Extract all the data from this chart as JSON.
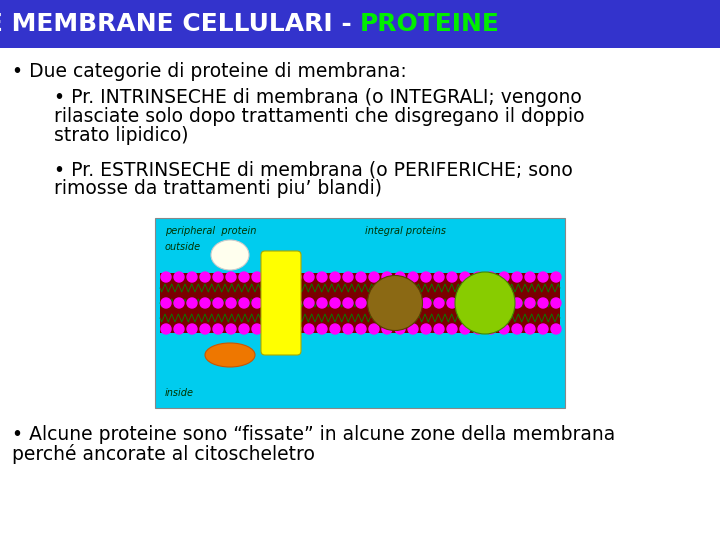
{
  "title_part1": "LE MEMBRANE CELLULARI - ",
  "title_part2": "PROTEINE",
  "title_bg": "#3333cc",
  "title_color1": "#ffffff",
  "title_color2": "#00ee00",
  "body_bg": "#ffffff",
  "img_bg": "#00ccee",
  "membrane_color": "#7a0000",
  "membrane_wave_color": "#008800",
  "head_color": "#ff00ff",
  "yellow_protein": "#ffff00",
  "brown_protein": "#8b6914",
  "green_protein": "#88cc00",
  "white_blob": "#ffffee",
  "orange_blob": "#ee7700",
  "label_color": "#003300",
  "text_color": "#000000",
  "title_fontsize": 18,
  "body_fontsize": 13.5,
  "bullet1": "• Due categorie di proteine di membrana:",
  "bullet2_line1": "    • Pr. INTRINSECHE di membrana (o INTEGRALI; vengono",
  "bullet2_line2": "    rilasciate solo dopo trattamenti che disgregano il doppio",
  "bullet2_line3": "    strato lipidico)",
  "bullet3_line1": "    • Pr. ESTRINSECHE di membrana (o PERIFERICHE; sono",
  "bullet3_line2": "    rimosse da trattamenti piu’ blandi)",
  "bullet4_line1": "• Alcune proteine sono “fissate” in alcune zone della membrana",
  "bullet4_line2": "perché ancorate al citoscheletro",
  "img_label_outside": "outside",
  "img_label_inside": "inside",
  "img_label_peripheral": "peripheral  protein",
  "img_label_integral": "integral proteins"
}
